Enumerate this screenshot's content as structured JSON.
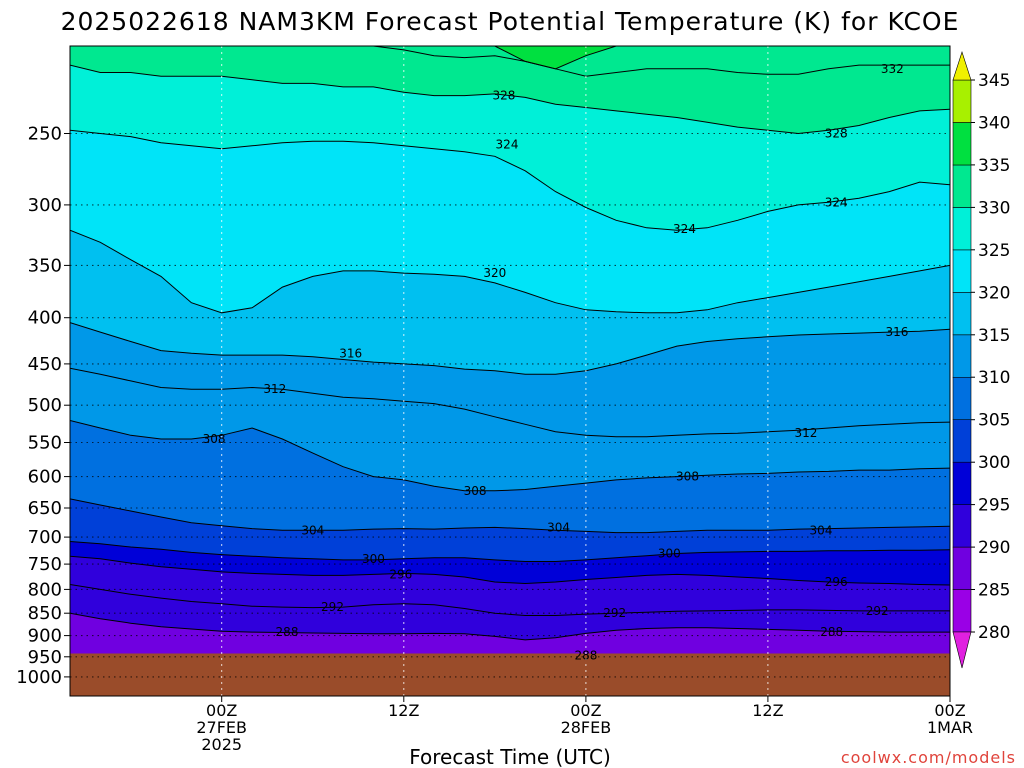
{
  "chart_data": {
    "type": "heatmap",
    "title": "2025022618 NAM3KM Forecast Potential Temperature (K) for KCOE",
    "xlabel": "Forecast Time (UTC)",
    "credit": "coolwx.com/models",
    "y_scale": "log-pressure",
    "y_axis_label": "",
    "y_ticks": [
      250,
      300,
      350,
      400,
      450,
      500,
      550,
      600,
      650,
      700,
      750,
      800,
      850,
      900,
      950,
      1000
    ],
    "y_range_hpa": [
      200,
      1050
    ],
    "x_range_hours": [
      -4,
      54
    ],
    "x_ticks": [
      {
        "hour": 6,
        "lines": [
          "00Z",
          "27FEB",
          "2025"
        ]
      },
      {
        "hour": 18,
        "lines": [
          "12Z"
        ]
      },
      {
        "hour": 30,
        "lines": [
          "00Z",
          "28FEB"
        ]
      },
      {
        "hour": 42,
        "lines": [
          "12Z"
        ]
      },
      {
        "hour": 54,
        "lines": [
          "00Z",
          "1MAR"
        ]
      }
    ],
    "grid": true,
    "ground_top_hpa": 942,
    "colorbar": {
      "ticks": [
        280,
        285,
        290,
        295,
        300,
        305,
        310,
        315,
        320,
        325,
        330,
        335,
        340,
        345
      ],
      "min": 275,
      "max": 350,
      "colors": [
        "#e020e0",
        "#9a00e6",
        "#7000e0",
        "#3000dc",
        "#0000d8",
        "#0040d8",
        "#0070e0",
        "#0098e8",
        "#00c0f0",
        "#00e4f8",
        "#00f0d8",
        "#00e890",
        "#00e040",
        "#a8f000",
        "#f0f000"
      ]
    },
    "ground_color": "#9a4c2a",
    "contour_labels": [
      {
        "value": "332",
        "hour": 50.2,
        "hpa": 212
      },
      {
        "value": "328",
        "hour": 24.6,
        "hpa": 227
      },
      {
        "value": "328",
        "hour": 46.5,
        "hpa": 250
      },
      {
        "value": "324",
        "hour": 24.8,
        "hpa": 257
      },
      {
        "value": "324",
        "hour": 36.5,
        "hpa": 319
      },
      {
        "value": "324",
        "hour": 46.5,
        "hpa": 298
      },
      {
        "value": "320",
        "hour": 24.0,
        "hpa": 357
      },
      {
        "value": "316",
        "hour": 14.5,
        "hpa": 438
      },
      {
        "value": "316",
        "hour": 50.5,
        "hpa": 415
      },
      {
        "value": "312",
        "hour": 9.5,
        "hpa": 480
      },
      {
        "value": "312",
        "hour": 44.5,
        "hpa": 537
      },
      {
        "value": "308",
        "hour": 5.5,
        "hpa": 545
      },
      {
        "value": "308",
        "hour": 22.7,
        "hpa": 622
      },
      {
        "value": "308",
        "hour": 36.7,
        "hpa": 600
      },
      {
        "value": "304",
        "hour": 12.0,
        "hpa": 688
      },
      {
        "value": "304",
        "hour": 28.2,
        "hpa": 683
      },
      {
        "value": "304",
        "hour": 45.5,
        "hpa": 688
      },
      {
        "value": "300",
        "hour": 16.0,
        "hpa": 740
      },
      {
        "value": "300",
        "hour": 35.5,
        "hpa": 730
      },
      {
        "value": "296",
        "hour": 17.8,
        "hpa": 770
      },
      {
        "value": "296",
        "hour": 46.5,
        "hpa": 785
      },
      {
        "value": "292",
        "hour": 13.3,
        "hpa": 837
      },
      {
        "value": "292",
        "hour": 31.9,
        "hpa": 850
      },
      {
        "value": "292",
        "hour": 49.2,
        "hpa": 845
      },
      {
        "value": "288",
        "hour": 10.3,
        "hpa": 892
      },
      {
        "value": "288",
        "hour": 46.2,
        "hpa": 892
      },
      {
        "value": "288",
        "hour": 30.0,
        "hpa": 947
      }
    ],
    "contour_levels": [
      {
        "value": 336,
        "hpa": [
          200,
          200,
          200,
          200,
          200,
          200,
          200,
          200,
          200,
          200,
          200,
          200,
          200,
          200,
          200,
          208,
          212,
          205,
          200,
          200,
          200,
          200,
          200,
          200,
          200,
          200,
          200,
          200,
          200,
          200
        ]
      },
      {
        "value": 332,
        "hpa": [
          200,
          200,
          200,
          200,
          200,
          200,
          200,
          200,
          200,
          200,
          200,
          202,
          205,
          206,
          205,
          208,
          212,
          216,
          214,
          212,
          212,
          212,
          214,
          215,
          215,
          212,
          210,
          210,
          210,
          210
        ]
      },
      {
        "value": 328,
        "hpa": [
          210,
          214,
          214,
          216,
          216,
          216,
          218,
          220,
          220,
          222,
          222,
          225,
          227,
          227,
          226,
          228,
          232,
          234,
          236,
          238,
          240,
          243,
          246,
          248,
          250,
          248,
          245,
          240,
          236,
          235
        ]
      },
      {
        "value": 324,
        "hpa": [
          248,
          250,
          252,
          256,
          258,
          260,
          258,
          256,
          255,
          255,
          256,
          258,
          260,
          262,
          265,
          275,
          290,
          302,
          312,
          318,
          320,
          318,
          312,
          305,
          300,
          298,
          295,
          290,
          283,
          285
        ]
      },
      {
        "value": 320,
        "hpa": [
          320,
          330,
          345,
          360,
          385,
          395,
          390,
          370,
          360,
          355,
          355,
          357,
          358,
          360,
          366,
          375,
          385,
          392,
          394,
          395,
          395,
          392,
          385,
          380,
          375,
          370,
          365,
          360,
          355,
          350
        ]
      },
      {
        "value": 316,
        "hpa": [
          405,
          415,
          425,
          435,
          438,
          440,
          440,
          440,
          442,
          445,
          448,
          450,
          452,
          456,
          458,
          462,
          462,
          458,
          450,
          440,
          430,
          425,
          422,
          420,
          418,
          417,
          416,
          415,
          414,
          412
        ]
      },
      {
        "value": 312,
        "hpa": [
          455,
          462,
          470,
          478,
          480,
          480,
          478,
          480,
          485,
          490,
          492,
          495,
          498,
          505,
          515,
          525,
          535,
          540,
          542,
          542,
          540,
          538,
          537,
          535,
          533,
          530,
          527,
          525,
          523,
          522
        ]
      },
      {
        "value": 308,
        "hpa": [
          520,
          530,
          540,
          545,
          545,
          540,
          530,
          545,
          565,
          585,
          600,
          605,
          615,
          622,
          622,
          620,
          615,
          610,
          605,
          602,
          600,
          598,
          596,
          595,
          593,
          592,
          590,
          590,
          588,
          587
        ]
      },
      {
        "value": 304,
        "hpa": [
          635,
          645,
          655,
          665,
          675,
          680,
          685,
          688,
          688,
          688,
          686,
          685,
          686,
          684,
          683,
          685,
          688,
          690,
          692,
          692,
          690,
          688,
          688,
          688,
          686,
          685,
          684,
          683,
          682,
          681
        ]
      },
      {
        "value": 300,
        "hpa": [
          708,
          712,
          718,
          722,
          728,
          732,
          735,
          738,
          740,
          742,
          742,
          740,
          738,
          738,
          742,
          745,
          745,
          742,
          738,
          734,
          730,
          728,
          727,
          726,
          726,
          725,
          725,
          724,
          724,
          723
        ]
      },
      {
        "value": 296,
        "hpa": [
          735,
          740,
          748,
          755,
          760,
          765,
          768,
          770,
          772,
          772,
          770,
          768,
          770,
          775,
          785,
          788,
          785,
          780,
          776,
          772,
          770,
          772,
          775,
          778,
          782,
          785,
          787,
          788,
          790,
          791
        ]
      },
      {
        "value": 292,
        "hpa": [
          790,
          800,
          810,
          818,
          825,
          830,
          835,
          837,
          838,
          837,
          832,
          830,
          832,
          840,
          850,
          855,
          855,
          852,
          850,
          848,
          846,
          845,
          844,
          843,
          843,
          844,
          845,
          845,
          845,
          845
        ]
      },
      {
        "value": 288,
        "hpa": [
          850,
          862,
          872,
          880,
          885,
          890,
          892,
          893,
          894,
          895,
          896,
          896,
          895,
          896,
          902,
          910,
          905,
          895,
          888,
          884,
          882,
          882,
          884,
          886,
          888,
          890,
          891,
          892,
          892,
          892
        ]
      }
    ]
  }
}
